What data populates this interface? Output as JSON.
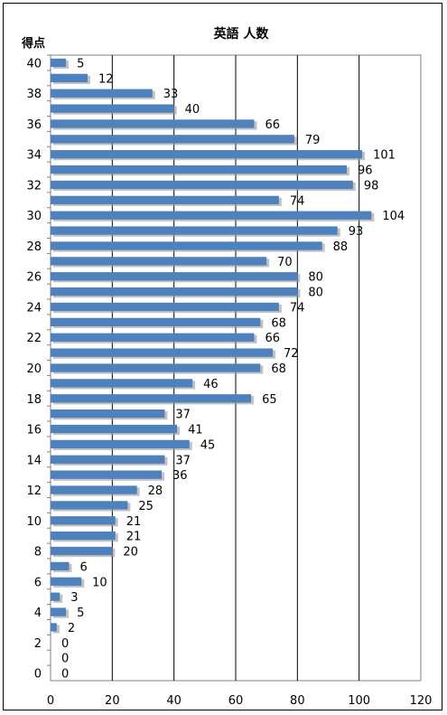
{
  "chart_data": {
    "type": "bar",
    "orientation": "horizontal",
    "title": "英語 人数",
    "ylabel": "得点",
    "xlabel": "",
    "xlim": [
      0,
      120
    ],
    "x_ticks": [
      0,
      20,
      40,
      60,
      80,
      100,
      120
    ],
    "grid": "vertical",
    "bar_color": "#4F81BD",
    "categories": [
      40,
      39,
      38,
      37,
      36,
      35,
      34,
      33,
      32,
      31,
      30,
      29,
      28,
      27,
      26,
      25,
      24,
      23,
      22,
      21,
      20,
      19,
      18,
      17,
      16,
      15,
      14,
      13,
      12,
      11,
      10,
      9,
      8,
      7,
      6,
      5,
      4,
      3,
      2,
      1,
      0
    ],
    "category_tick_labels": [
      "40",
      "38",
      "36",
      "34",
      "32",
      "30",
      "28",
      "26",
      "24",
      "22",
      "20",
      "18",
      "16",
      "14",
      "12",
      "10",
      "8",
      "6",
      "4",
      "2",
      "0"
    ],
    "values": [
      5,
      12,
      33,
      40,
      66,
      79,
      101,
      96,
      98,
      74,
      104,
      93,
      88,
      70,
      80,
      80,
      74,
      68,
      66,
      72,
      68,
      46,
      65,
      37,
      41,
      45,
      37,
      36,
      28,
      25,
      21,
      21,
      20,
      6,
      10,
      3,
      5,
      2,
      0,
      0,
      0
    ]
  }
}
